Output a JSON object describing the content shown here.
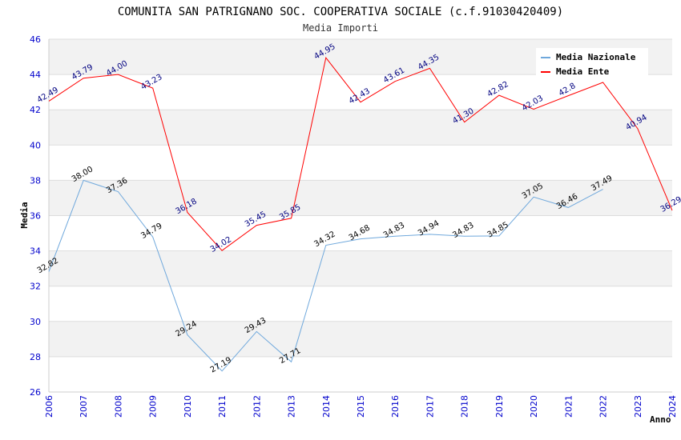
{
  "chart_data": {
    "type": "line",
    "title": "COMUNITA SAN PATRIGNANO SOC. COOPERATIVA SOCIALE (c.f.91030420409)",
    "subtitle": "Media Importi",
    "xlabel": "Anno",
    "ylabel": "Media",
    "x": [
      "2006",
      "2007",
      "2008",
      "2009",
      "2010",
      "2011",
      "2012",
      "2013",
      "2014",
      "2015",
      "2016",
      "2017",
      "2018",
      "2019",
      "2020",
      "2021",
      "2022",
      "2023",
      "2024"
    ],
    "ylim": [
      26,
      46
    ],
    "yticks": [
      "26",
      "28",
      "30",
      "32",
      "34",
      "36",
      "38",
      "40",
      "42",
      "44",
      "46"
    ],
    "grid": true,
    "legend_position": "top-right",
    "series": [
      {
        "name": "Media Nazionale",
        "color": "#6fa8dc",
        "values": [
          32.82,
          38.0,
          37.36,
          34.79,
          29.24,
          27.19,
          29.43,
          27.71,
          34.32,
          34.68,
          34.83,
          34.94,
          34.83,
          34.85,
          37.05,
          36.46,
          37.49,
          null,
          null
        ],
        "labels": [
          "32.82",
          "38.00",
          "37.36",
          "34.79",
          "29.24",
          "27.19",
          "29.43",
          "27.71",
          "34.32",
          "34.68",
          "34.83",
          "34.94",
          "34.83",
          "34.85",
          "37.05",
          "36.46",
          "37.49",
          "",
          ""
        ]
      },
      {
        "name": "Media Ente",
        "color": "#ff0000",
        "values": [
          42.49,
          43.79,
          44.0,
          43.23,
          36.18,
          34.02,
          35.45,
          35.85,
          44.95,
          42.43,
          43.61,
          44.35,
          41.3,
          42.82,
          42.03,
          42.8,
          43.55,
          40.94,
          36.29
        ],
        "labels": [
          "42.49",
          "43.79",
          "44.00",
          "43.23",
          "36.18",
          "34.02",
          "35.45",
          "35.85",
          "44.95",
          "42.43",
          "43.61",
          "44.35",
          "41.30",
          "42.82",
          "42.03",
          "42.8",
          "",
          "40.94",
          "36.29"
        ]
      }
    ]
  }
}
